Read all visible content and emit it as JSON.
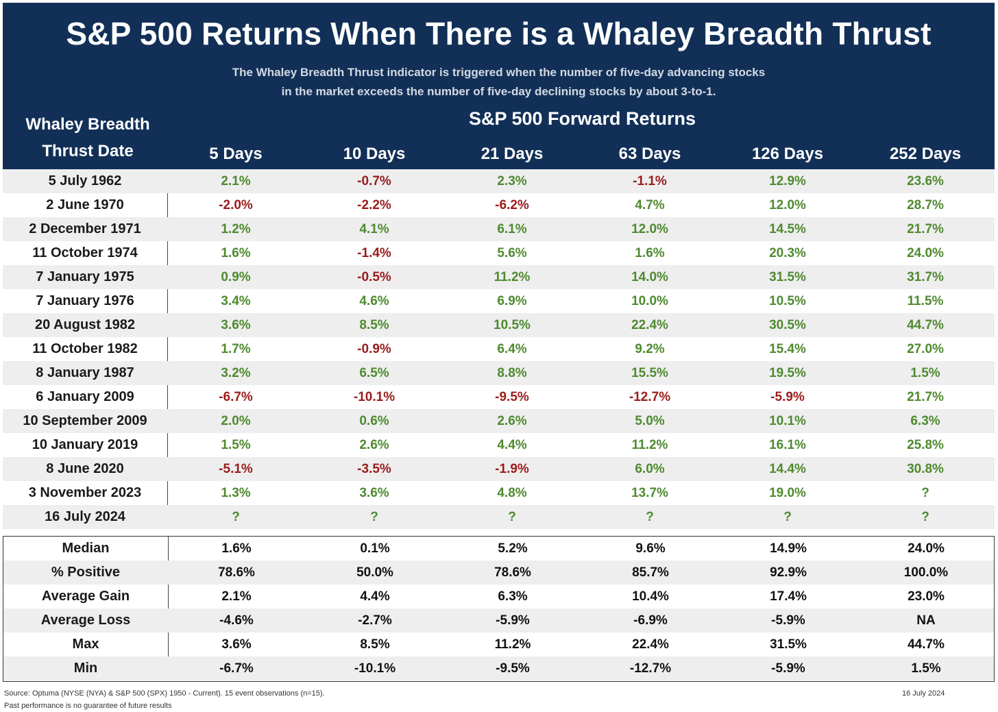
{
  "header": {
    "title": "S&P 500 Returns When There is a Whaley Breadth Thrust",
    "subtitle_line1": "The Whaley Breadth Thrust indicator is triggered when the number of five-day advancing stocks",
    "subtitle_line2": "in the market exceeds the number of five-day declining stocks by about 3-to-1.",
    "date_header_line1": "Whaley Breadth",
    "date_header_line2": "Thrust Date",
    "returns_header": "S&P 500 Forward Returns",
    "periods": [
      "5 Days",
      "10 Days",
      "21 Days",
      "63 Days",
      "126 Days",
      "252 Days"
    ]
  },
  "events": [
    {
      "date": "5 July 1962",
      "values": [
        "2.1%",
        "-0.7%",
        "2.3%",
        "-1.1%",
        "12.9%",
        "23.6%"
      ]
    },
    {
      "date": "2 June 1970",
      "values": [
        "-2.0%",
        "-2.2%",
        "-6.2%",
        "4.7%",
        "12.0%",
        "28.7%"
      ]
    },
    {
      "date": "2 December 1971",
      "values": [
        "1.2%",
        "4.1%",
        "6.1%",
        "12.0%",
        "14.5%",
        "21.7%"
      ]
    },
    {
      "date": "11 October 1974",
      "values": [
        "1.6%",
        "-1.4%",
        "5.6%",
        "1.6%",
        "20.3%",
        "24.0%"
      ]
    },
    {
      "date": "7 January 1975",
      "values": [
        "0.9%",
        "-0.5%",
        "11.2%",
        "14.0%",
        "31.5%",
        "31.7%"
      ]
    },
    {
      "date": "7 January 1976",
      "values": [
        "3.4%",
        "4.6%",
        "6.9%",
        "10.0%",
        "10.5%",
        "11.5%"
      ]
    },
    {
      "date": "20 August 1982",
      "values": [
        "3.6%",
        "8.5%",
        "10.5%",
        "22.4%",
        "30.5%",
        "44.7%"
      ]
    },
    {
      "date": "11 October 1982",
      "values": [
        "1.7%",
        "-0.9%",
        "6.4%",
        "9.2%",
        "15.4%",
        "27.0%"
      ]
    },
    {
      "date": "8 January 1987",
      "values": [
        "3.2%",
        "6.5%",
        "8.8%",
        "15.5%",
        "19.5%",
        "1.5%"
      ]
    },
    {
      "date": "6 January 2009",
      "values": [
        "-6.7%",
        "-10.1%",
        "-9.5%",
        "-12.7%",
        "-5.9%",
        "21.7%"
      ]
    },
    {
      "date": "10 September 2009",
      "values": [
        "2.0%",
        "0.6%",
        "2.6%",
        "5.0%",
        "10.1%",
        "6.3%"
      ]
    },
    {
      "date": "10 January 2019",
      "values": [
        "1.5%",
        "2.6%",
        "4.4%",
        "11.2%",
        "16.1%",
        "25.8%"
      ]
    },
    {
      "date": "8 June 2020",
      "values": [
        "-5.1%",
        "-3.5%",
        "-1.9%",
        "6.0%",
        "14.4%",
        "30.8%"
      ]
    },
    {
      "date": "3 November 2023",
      "values": [
        "1.3%",
        "3.6%",
        "4.8%",
        "13.7%",
        "19.0%",
        "?"
      ]
    },
    {
      "date": "16 July 2024",
      "values": [
        "?",
        "?",
        "?",
        "?",
        "?",
        "?"
      ]
    }
  ],
  "stats": [
    {
      "label": "Median",
      "values": [
        "1.6%",
        "0.1%",
        "5.2%",
        "9.6%",
        "14.9%",
        "24.0%"
      ]
    },
    {
      "label": "% Positive",
      "values": [
        "78.6%",
        "50.0%",
        "78.6%",
        "85.7%",
        "92.9%",
        "100.0%"
      ]
    },
    {
      "label": "Average Gain",
      "values": [
        "2.1%",
        "4.4%",
        "6.3%",
        "10.4%",
        "17.4%",
        "23.0%"
      ]
    },
    {
      "label": "Average Loss",
      "values": [
        "-4.6%",
        "-2.7%",
        "-5.9%",
        "-6.9%",
        "-5.9%",
        "NA"
      ]
    },
    {
      "label": "Max",
      "values": [
        "3.6%",
        "8.5%",
        "11.2%",
        "22.4%",
        "31.5%",
        "44.7%"
      ]
    },
    {
      "label": "Min",
      "values": [
        "-6.7%",
        "-10.1%",
        "-9.5%",
        "-12.7%",
        "-5.9%",
        "1.5%"
      ]
    }
  ],
  "footer": {
    "source": "Source: Optuma (NYSE (NYA) & S&P 500 (SPX) 1950 - Current). 15 event observations (n=15).",
    "disclaimer": "Past performance is no guarantee of future results",
    "date": "16 July 2024"
  },
  "colors": {
    "header_bg": "#123057",
    "positive": "#4e8a2f",
    "negative": "#9b1b1b",
    "row_shade": "#eeeeee"
  }
}
